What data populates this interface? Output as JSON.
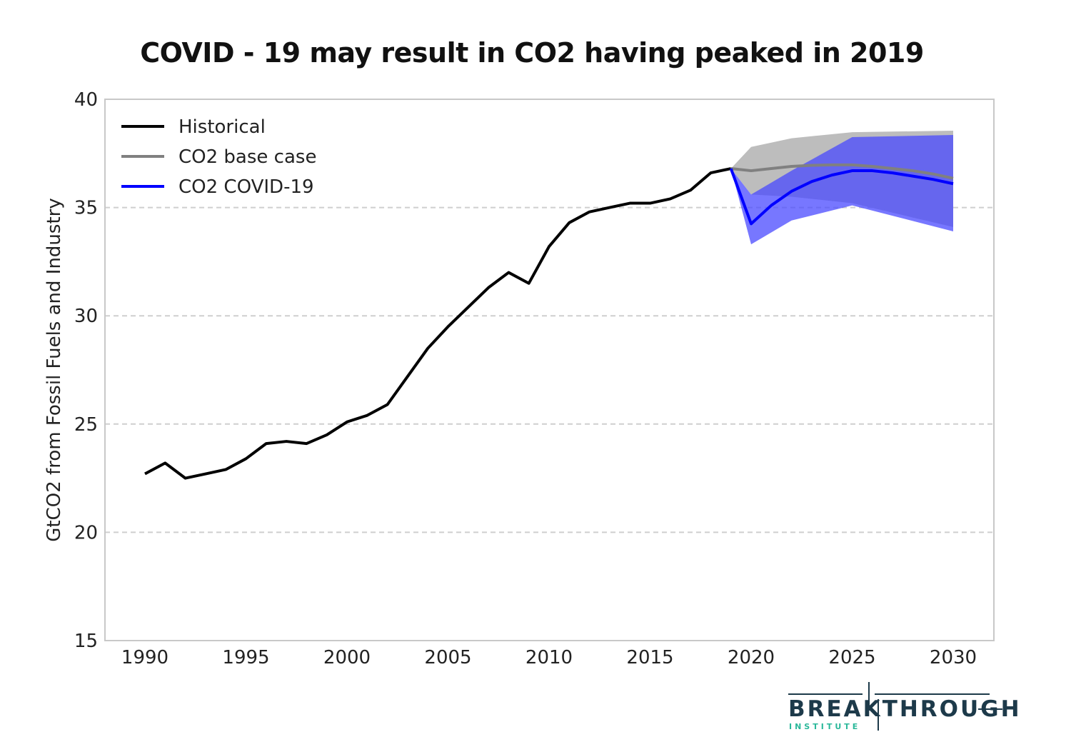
{
  "chart_data": {
    "type": "line",
    "title": "COVID - 19 may result in CO2 having peaked in 2019",
    "xlabel": "",
    "ylabel": "GtCO2 from Fossil Fuels and Industry",
    "xlim": [
      1988,
      2032
    ],
    "ylim": [
      15,
      40
    ],
    "xticks": [
      1990,
      1995,
      2000,
      2005,
      2010,
      2015,
      2020,
      2025,
      2030
    ],
    "yticks": [
      15,
      20,
      25,
      30,
      35,
      40
    ],
    "grid": "horizontal dashed",
    "legend": "top-left",
    "series": [
      {
        "name": "Historical",
        "color": "#000000",
        "x": [
          1990,
          1991,
          1992,
          1993,
          1994,
          1995,
          1996,
          1997,
          1998,
          1999,
          2000,
          2001,
          2002,
          2003,
          2004,
          2005,
          2006,
          2007,
          2008,
          2009,
          2010,
          2011,
          2012,
          2013,
          2014,
          2015,
          2016,
          2017,
          2018,
          2019
        ],
        "y": [
          22.7,
          23.2,
          22.5,
          22.7,
          22.9,
          23.4,
          24.1,
          24.2,
          24.1,
          24.5,
          25.1,
          25.4,
          25.9,
          27.2,
          28.5,
          29.5,
          30.4,
          31.3,
          32.0,
          31.5,
          33.2,
          34.3,
          34.8,
          35.0,
          35.2,
          35.2,
          35.4,
          35.8,
          36.6,
          36.8
        ]
      },
      {
        "name": "CO2 base case",
        "color": "#808080",
        "x": [
          2019,
          2020,
          2021,
          2022,
          2023,
          2024,
          2025,
          2026,
          2027,
          2028,
          2029,
          2030
        ],
        "y": [
          36.8,
          36.7,
          36.8,
          36.9,
          36.95,
          36.97,
          36.97,
          36.9,
          36.8,
          36.7,
          36.55,
          36.35
        ],
        "band_x": [
          2019,
          2020,
          2022,
          2025,
          2030
        ],
        "band_upper": [
          36.8,
          37.8,
          38.2,
          38.48,
          38.55
        ],
        "band_lower": [
          36.8,
          35.6,
          35.5,
          35.2,
          34.1
        ],
        "band_color": "#bdbdbd"
      },
      {
        "name": "CO2 COVID-19",
        "color": "#0000ff",
        "x": [
          2019,
          2020,
          2021,
          2022,
          2023,
          2024,
          2025,
          2026,
          2027,
          2028,
          2029,
          2030
        ],
        "y": [
          36.8,
          34.25,
          35.1,
          35.75,
          36.2,
          36.5,
          36.7,
          36.7,
          36.6,
          36.45,
          36.3,
          36.1
        ],
        "band_x": [
          2019,
          2020,
          2022,
          2025,
          2030
        ],
        "band_upper": [
          36.8,
          35.6,
          36.7,
          38.25,
          38.35
        ],
        "band_lower": [
          36.8,
          33.3,
          34.4,
          35.1,
          33.9
        ],
        "band_color": "#4a4aff"
      }
    ]
  },
  "logo": {
    "main": "BREAKTHROUGH",
    "sub": "INSTITUTE"
  }
}
